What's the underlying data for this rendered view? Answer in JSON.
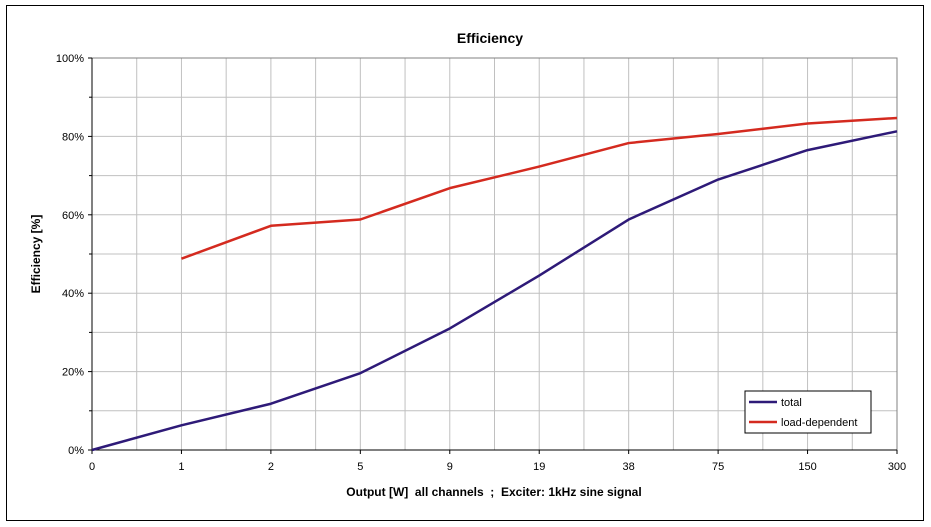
{
  "chart_data": {
    "type": "line",
    "title": "Efficiency",
    "xlabel": "Output [W]  all channels  ;  Exciter: 1kHz sine signal",
    "ylabel": "Efficiency [%]",
    "categories": [
      "0",
      "1",
      "2",
      "5",
      "9",
      "19",
      "38",
      "75",
      "150",
      "300"
    ],
    "yticks": [
      "0%",
      "20%",
      "40%",
      "60%",
      "80%",
      "100%"
    ],
    "ylim": [
      0,
      100
    ],
    "grid": true,
    "legend_position": "bottom-right",
    "series": [
      {
        "name": "total",
        "color": "#2E1A78",
        "values": [
          0,
          6.3,
          11.8,
          19.6,
          31.0,
          44.5,
          58.8,
          69.0,
          76.5,
          81.3
        ]
      },
      {
        "name": "load-dependent",
        "color": "#D42A1F",
        "values": [
          null,
          48.8,
          57.2,
          58.8,
          66.8,
          72.3,
          78.3,
          80.6,
          83.3,
          84.7
        ]
      }
    ]
  }
}
